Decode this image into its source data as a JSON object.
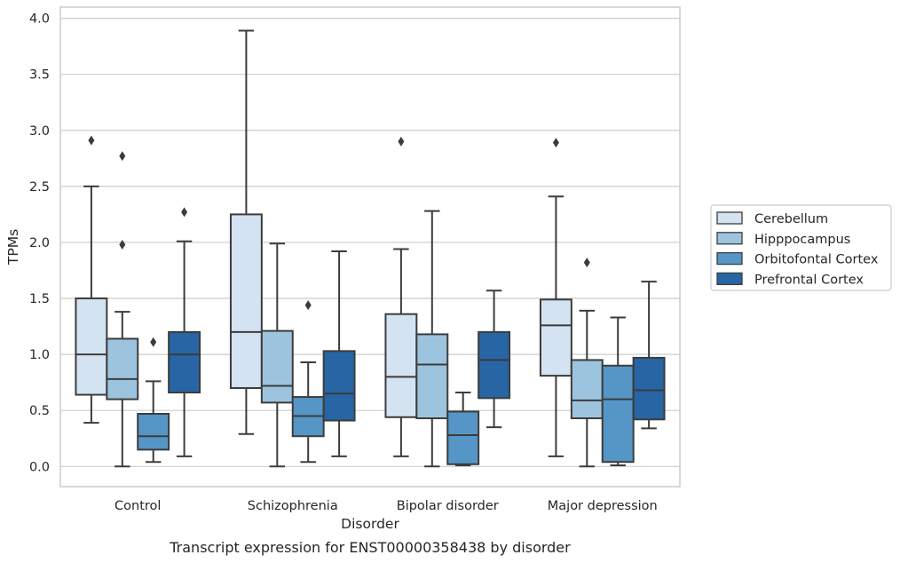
{
  "chart_data": {
    "type": "box",
    "caption": "Transcript expression for ENST00000358438 by disorder",
    "xlabel": "Disorder",
    "ylabel": "TPMs",
    "ylim": [
      -0.18,
      4.1
    ],
    "yticks": [
      "0.0",
      "0.5",
      "1.0",
      "1.5",
      "2.0",
      "2.5",
      "3.0",
      "3.5",
      "4.0"
    ],
    "categories": [
      "Control",
      "Schizophrenia",
      "Bipolar disorder",
      "Major depression"
    ],
    "grid": true,
    "legend_position": "right",
    "series": [
      {
        "name": "Cerebellum",
        "color": "#d4e3f2",
        "boxes": [
          {
            "whislo": 0.39,
            "q1": 0.64,
            "med": 1.0,
            "q3": 1.5,
            "whishi": 2.5,
            "fliers": [
              2.91
            ]
          },
          {
            "whislo": 0.29,
            "q1": 0.7,
            "med": 1.2,
            "q3": 2.25,
            "whishi": 3.89,
            "fliers": []
          },
          {
            "whislo": 0.09,
            "q1": 0.44,
            "med": 0.8,
            "q3": 1.36,
            "whishi": 1.94,
            "fliers": [
              2.9
            ]
          },
          {
            "whislo": 0.09,
            "q1": 0.81,
            "med": 1.26,
            "q3": 1.49,
            "whishi": 2.41,
            "fliers": [
              2.89
            ]
          }
        ]
      },
      {
        "name": "Hipppocampus",
        "color": "#9dc4de",
        "boxes": [
          {
            "whislo": 0.0,
            "q1": 0.6,
            "med": 0.78,
            "q3": 1.14,
            "whishi": 1.38,
            "fliers": [
              1.98,
              2.77
            ]
          },
          {
            "whislo": 0.0,
            "q1": 0.57,
            "med": 0.72,
            "q3": 1.21,
            "whishi": 1.99,
            "fliers": []
          },
          {
            "whislo": 0.0,
            "q1": 0.43,
            "med": 0.91,
            "q3": 1.18,
            "whishi": 2.28,
            "fliers": []
          },
          {
            "whislo": 0.0,
            "q1": 0.43,
            "med": 0.59,
            "q3": 0.95,
            "whishi": 1.39,
            "fliers": [
              1.82
            ]
          }
        ]
      },
      {
        "name": "Orbitofontal Cortex",
        "color": "#5596c7",
        "boxes": [
          {
            "whislo": 0.04,
            "q1": 0.15,
            "med": 0.27,
            "q3": 0.47,
            "whishi": 0.76,
            "fliers": [
              1.11
            ]
          },
          {
            "whislo": 0.04,
            "q1": 0.27,
            "med": 0.45,
            "q3": 0.62,
            "whishi": 0.93,
            "fliers": [
              1.44
            ]
          },
          {
            "whislo": 0.01,
            "q1": 0.02,
            "med": 0.28,
            "q3": 0.49,
            "whishi": 0.66,
            "fliers": []
          },
          {
            "whislo": 0.01,
            "q1": 0.04,
            "med": 0.6,
            "q3": 0.9,
            "whishi": 1.33,
            "fliers": []
          }
        ]
      },
      {
        "name": "Prefrontal Cortex",
        "color": "#2765a4",
        "boxes": [
          {
            "whislo": 0.09,
            "q1": 0.66,
            "med": 1.0,
            "q3": 1.2,
            "whishi": 2.01,
            "fliers": [
              2.27
            ]
          },
          {
            "whislo": 0.09,
            "q1": 0.41,
            "med": 0.65,
            "q3": 1.03,
            "whishi": 1.92,
            "fliers": []
          },
          {
            "whislo": 0.35,
            "q1": 0.61,
            "med": 0.95,
            "q3": 1.2,
            "whishi": 1.57,
            "fliers": []
          },
          {
            "whislo": 0.34,
            "q1": 0.42,
            "med": 0.68,
            "q3": 0.97,
            "whishi": 1.65,
            "fliers": []
          }
        ]
      }
    ]
  }
}
